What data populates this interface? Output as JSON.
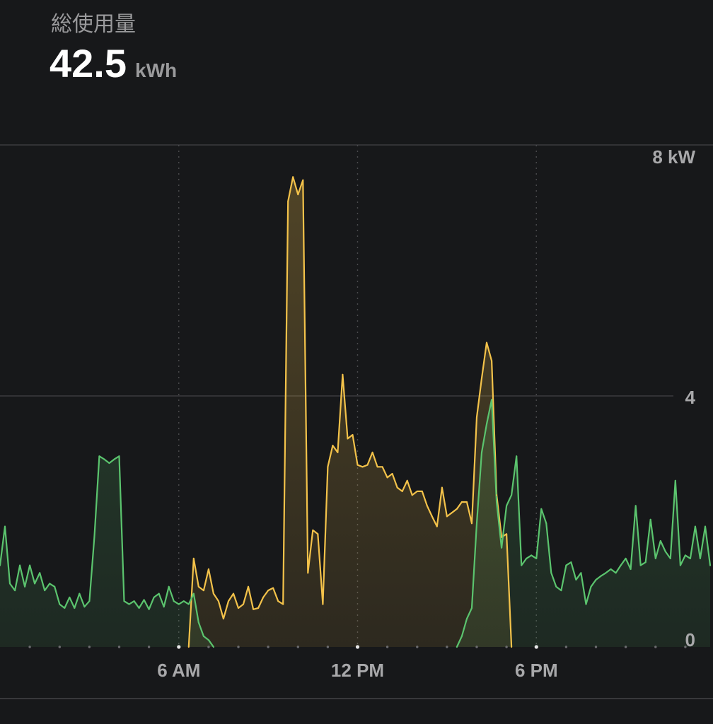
{
  "header": {
    "title": "総使用量",
    "total_value": "42.5",
    "total_unit": "kWh"
  },
  "colors": {
    "background": "#17181a",
    "grid_line": "#3b3b3e",
    "vertical_grid": "#4a4a4d",
    "axis_text": "#a8a8aa",
    "hour_marker": "#6b6b6e",
    "major_hour_marker": "#e6e6e6"
  },
  "chart_data": {
    "type": "area",
    "xlim": [
      "00:00",
      "24:00"
    ],
    "ylim": [
      0,
      8
    ],
    "grid": true,
    "x_ticks": [
      {
        "value": "06:00",
        "label": "6 AM"
      },
      {
        "value": "12:00",
        "label": "12 PM"
      },
      {
        "value": "18:00",
        "label": "6 PM"
      }
    ],
    "y_ticks": [
      {
        "value": 8,
        "label": "8 kW"
      },
      {
        "value": 4,
        "label": "4"
      },
      {
        "value": 0,
        "label": "0"
      }
    ],
    "x": [
      "00:00",
      "00:10",
      "00:20",
      "00:30",
      "00:40",
      "00:50",
      "01:00",
      "01:10",
      "01:20",
      "01:30",
      "01:40",
      "01:50",
      "02:00",
      "02:10",
      "02:20",
      "02:30",
      "02:40",
      "02:50",
      "03:00",
      "03:10",
      "03:20",
      "03:30",
      "03:40",
      "03:50",
      "04:00",
      "04:10",
      "04:20",
      "04:30",
      "04:40",
      "04:50",
      "05:00",
      "05:10",
      "05:20",
      "05:30",
      "05:40",
      "05:50",
      "06:00",
      "06:10",
      "06:20",
      "06:30",
      "06:40",
      "06:50",
      "07:00",
      "07:10",
      "07:20",
      "07:30",
      "07:40",
      "07:50",
      "08:00",
      "08:10",
      "08:20",
      "08:30",
      "08:40",
      "08:50",
      "09:00",
      "09:10",
      "09:20",
      "09:30",
      "09:40",
      "09:50",
      "10:00",
      "10:10",
      "10:20",
      "10:30",
      "10:40",
      "10:50",
      "11:00",
      "11:10",
      "11:20",
      "11:30",
      "11:40",
      "11:50",
      "12:00",
      "12:10",
      "12:20",
      "12:30",
      "12:40",
      "12:50",
      "13:00",
      "13:10",
      "13:20",
      "13:30",
      "13:40",
      "13:50",
      "14:00",
      "14:10",
      "14:20",
      "14:30",
      "14:40",
      "14:50",
      "15:00",
      "15:10",
      "15:20",
      "15:30",
      "15:40",
      "15:50",
      "16:00",
      "16:10",
      "16:20",
      "16:30",
      "16:40",
      "16:50",
      "17:00",
      "17:10",
      "17:20",
      "17:30",
      "17:40",
      "17:50",
      "18:00",
      "18:10",
      "18:20",
      "18:30",
      "18:40",
      "18:50",
      "19:00",
      "19:10",
      "19:20",
      "19:30",
      "19:40",
      "19:50",
      "20:00",
      "20:10",
      "20:20",
      "20:30",
      "20:40",
      "20:50",
      "21:00",
      "21:10",
      "21:20",
      "21:30",
      "21:40",
      "21:50",
      "22:00",
      "22:10",
      "22:20",
      "22:30",
      "22:40",
      "22:50",
      "23:00",
      "23:10",
      "23:20",
      "23:30",
      "23:40",
      "23:50"
    ],
    "series": [
      {
        "color": "#f3c24a",
        "values": [
          0,
          0,
          0,
          0,
          0,
          0,
          0,
          0,
          0,
          0,
          0,
          0,
          0,
          0,
          0,
          0,
          0,
          0,
          0,
          0,
          0,
          0,
          0,
          0,
          0,
          0,
          0,
          0,
          0,
          0,
          0,
          0,
          0,
          0,
          0,
          0,
          0,
          0,
          0,
          1.41,
          0.96,
          0.9,
          1.24,
          0.85,
          0.73,
          0.45,
          0.73,
          0.85,
          0.62,
          0.68,
          0.96,
          0.6,
          0.62,
          0.79,
          0.9,
          0.94,
          0.73,
          0.68,
          7.1,
          7.49,
          7.21,
          7.44,
          1.18,
          1.86,
          1.8,
          0.68,
          2.87,
          3.21,
          3.1,
          4.34,
          3.32,
          3.38,
          2.9,
          2.87,
          2.9,
          3.1,
          2.87,
          2.87,
          2.7,
          2.76,
          2.54,
          2.48,
          2.65,
          2.42,
          2.48,
          2.48,
          2.25,
          2.08,
          1.92,
          2.54,
          2.08,
          2.14,
          2.2,
          2.31,
          2.31,
          1.97,
          3.66,
          4.28,
          4.85,
          4.56,
          2.42,
          1.75,
          1.8,
          0,
          0,
          0,
          0,
          0,
          0,
          0,
          0,
          0,
          0,
          0,
          0,
          0,
          0,
          0,
          0,
          0,
          0,
          0,
          0,
          0,
          0,
          0,
          0,
          0,
          0,
          0,
          0,
          0,
          0,
          0,
          0,
          0,
          0,
          0,
          0,
          0,
          0,
          0,
          0,
          0
        ]
      },
      {
        "color": "#5bc46e",
        "values": [
          1.3,
          1.92,
          1.01,
          0.9,
          1.3,
          0.96,
          1.3,
          1.01,
          1.18,
          0.9,
          1.01,
          0.96,
          0.68,
          0.62,
          0.79,
          0.62,
          0.85,
          0.64,
          0.73,
          1.75,
          3.04,
          2.99,
          2.93,
          2.99,
          3.04,
          0.73,
          0.68,
          0.73,
          0.62,
          0.75,
          0.6,
          0.79,
          0.85,
          0.64,
          0.96,
          0.73,
          0.68,
          0.73,
          0.68,
          0.85,
          0.39,
          0.17,
          0.11,
          0,
          0,
          0,
          0,
          0,
          0,
          0,
          0,
          0,
          0,
          0,
          0,
          0,
          0,
          0,
          0,
          0,
          0,
          0,
          0,
          0,
          0,
          0,
          0,
          0,
          0,
          0,
          0,
          0,
          0,
          0,
          0,
          0,
          0,
          0,
          0,
          0,
          0,
          0,
          0,
          0,
          0,
          0,
          0,
          0,
          0,
          0,
          0,
          0,
          0,
          0.17,
          0.45,
          0.62,
          1.97,
          3.1,
          3.55,
          3.94,
          2.31,
          1.58,
          2.25,
          2.42,
          3.04,
          1.3,
          1.41,
          1.46,
          1.41,
          2.2,
          1.97,
          1.18,
          0.96,
          0.9,
          1.3,
          1.35,
          1.07,
          1.18,
          0.68,
          0.96,
          1.07,
          1.13,
          1.18,
          1.24,
          1.18,
          1.3,
          1.41,
          1.24,
          2.25,
          1.3,
          1.35,
          2.03,
          1.41,
          1.69,
          1.52,
          1.41,
          2.65,
          1.3,
          1.46,
          1.41,
          1.92,
          1.41,
          1.92,
          1.3
        ]
      }
    ]
  }
}
